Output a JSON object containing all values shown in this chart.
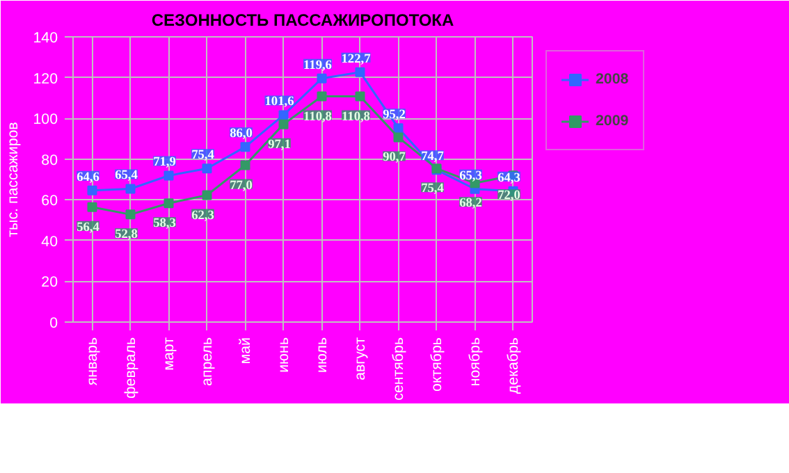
{
  "chart_data": {
    "type": "line",
    "title": "СЕЗОННОСТЬ ПАССАЖИРОПОТОКА",
    "ylabel": "тыс. пассажиров",
    "categories": [
      "январь",
      "февраль",
      "март",
      "апрель",
      "май",
      "июнь",
      "июль",
      "август",
      "сентябрь",
      "октябрь",
      "ноябрь",
      "декабрь"
    ],
    "series": [
      {
        "name": "2008",
        "color": "#3366ff",
        "values": [
          64.6,
          65.4,
          71.9,
          75.4,
          86.0,
          101.6,
          119.6,
          122.7,
          95.2,
          74.7,
          65.3,
          64.3
        ],
        "value_labels": [
          "64,6",
          "65,4",
          "71,9",
          "75,4",
          "86,0",
          "101,6",
          "119,6",
          "122,7",
          "95,2",
          "74,7",
          "65,3",
          "64,3"
        ]
      },
      {
        "name": "2009",
        "color": "#339966",
        "values": [
          56.4,
          52.8,
          58.3,
          62.3,
          77.0,
          97.1,
          110.8,
          110.8,
          90.7,
          75.4,
          68.2,
          72.0
        ],
        "value_labels": [
          "56,4",
          "52,8",
          "58,3",
          "62,3",
          "77,0",
          "97,1",
          "110,8",
          "110,8",
          "90,7",
          "75,4",
          "68,2",
          "72,0"
        ]
      }
    ],
    "ylim": [
      0,
      140
    ],
    "yticks": [
      0,
      20,
      40,
      60,
      80,
      100,
      120,
      140
    ],
    "grid": true,
    "legend": "top right",
    "marker": "square"
  }
}
